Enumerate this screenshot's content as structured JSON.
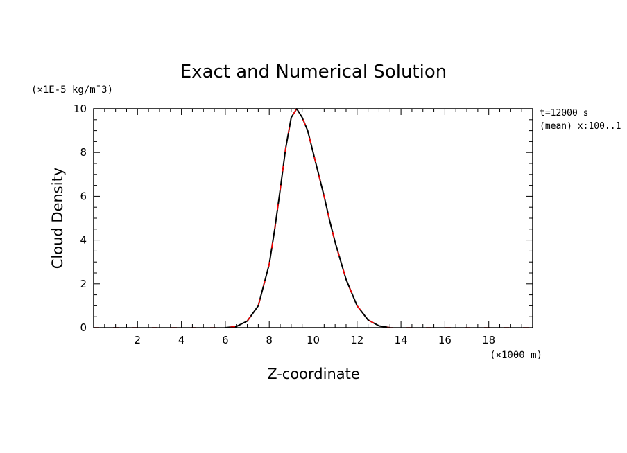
{
  "chart_data": {
    "type": "line",
    "title": "Exact and Numerical Solution",
    "xlabel": "Z-coordinate",
    "ylabel": "Cloud Density",
    "x_unit": "(×1000 m)",
    "y_unit": "(×1E-5 kg/m¯3)",
    "annotations": [
      "t=12000 s",
      "(mean) x:100..1"
    ],
    "xlim": [
      0,
      20
    ],
    "ylim": [
      0,
      10
    ],
    "x_ticks": [
      2,
      4,
      6,
      8,
      10,
      12,
      14,
      16,
      18
    ],
    "y_ticks": [
      0,
      2,
      4,
      6,
      8,
      10
    ],
    "grid": false,
    "series": [
      {
        "style": "solid",
        "color": "#000000",
        "x": [
          6.0,
          6.5,
          7.0,
          7.5,
          8.0,
          8.25,
          8.5,
          8.75,
          9.0,
          9.25,
          9.5,
          9.75,
          10.0,
          10.25,
          10.5,
          10.75,
          11.0,
          11.5,
          12.0,
          12.5,
          13.0,
          13.5
        ],
        "y": [
          0.0,
          0.05,
          0.3,
          1.0,
          2.9,
          4.5,
          6.3,
          8.2,
          9.6,
          10.0,
          9.6,
          9.0,
          8.0,
          7.0,
          6.0,
          4.9,
          3.9,
          2.2,
          1.0,
          0.35,
          0.08,
          0.0
        ]
      },
      {
        "style": "dashed",
        "color": "#ff0000",
        "x": [
          0,
          2,
          4,
          6.0,
          6.5,
          7.0,
          7.5,
          8.0,
          8.25,
          8.5,
          8.75,
          9.0,
          9.25,
          9.5,
          9.75,
          10.0,
          10.25,
          10.5,
          10.75,
          11.0,
          11.5,
          12.0,
          12.5,
          13.0,
          13.5,
          16,
          20
        ],
        "y": [
          0,
          0,
          0,
          0.0,
          0.05,
          0.3,
          1.0,
          2.9,
          4.5,
          6.3,
          8.2,
          9.6,
          10.0,
          9.6,
          9.0,
          8.0,
          7.0,
          6.0,
          4.9,
          3.9,
          2.2,
          1.0,
          0.35,
          0.08,
          0.0,
          0,
          0
        ]
      }
    ]
  },
  "colors": {
    "exact": "#000000",
    "numerical": "#ff0000"
  }
}
